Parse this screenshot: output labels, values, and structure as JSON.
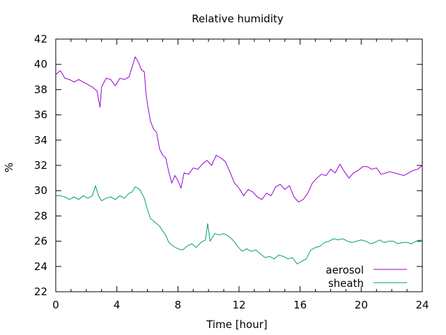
{
  "chart_data": {
    "type": "line",
    "title": "Relative humidity",
    "xlabel": "Time [hour]",
    "ylabel": "%",
    "xlim": [
      0,
      24
    ],
    "ylim": [
      22,
      42
    ],
    "x_ticks": [
      0,
      4,
      8,
      12,
      16,
      20,
      24
    ],
    "y_ticks": [
      22,
      24,
      26,
      28,
      30,
      32,
      34,
      36,
      38,
      40,
      42
    ],
    "grid": false,
    "legend_position": "bottom-right",
    "series": [
      {
        "name": "aerosol",
        "color": "#9400d3",
        "points": [
          [
            0.0,
            39.2
          ],
          [
            0.3,
            39.5
          ],
          [
            0.6,
            38.9
          ],
          [
            0.9,
            38.8
          ],
          [
            1.2,
            38.6
          ],
          [
            1.5,
            38.8
          ],
          [
            1.8,
            38.6
          ],
          [
            2.1,
            38.4
          ],
          [
            2.4,
            38.2
          ],
          [
            2.7,
            37.9
          ],
          [
            2.9,
            36.6
          ],
          [
            3.0,
            38.2
          ],
          [
            3.3,
            38.9
          ],
          [
            3.6,
            38.8
          ],
          [
            3.9,
            38.3
          ],
          [
            4.2,
            38.9
          ],
          [
            4.5,
            38.8
          ],
          [
            4.8,
            39.0
          ],
          [
            5.0,
            39.8
          ],
          [
            5.2,
            40.6
          ],
          [
            5.4,
            40.2
          ],
          [
            5.6,
            39.6
          ],
          [
            5.8,
            39.4
          ],
          [
            5.9,
            37.8
          ],
          [
            6.0,
            36.9
          ],
          [
            6.2,
            35.5
          ],
          [
            6.4,
            34.9
          ],
          [
            6.6,
            34.6
          ],
          [
            6.8,
            33.3
          ],
          [
            7.0,
            32.8
          ],
          [
            7.2,
            32.6
          ],
          [
            7.4,
            31.5
          ],
          [
            7.6,
            30.6
          ],
          [
            7.8,
            31.2
          ],
          [
            8.0,
            30.8
          ],
          [
            8.2,
            30.2
          ],
          [
            8.4,
            31.4
          ],
          [
            8.7,
            31.3
          ],
          [
            9.0,
            31.8
          ],
          [
            9.3,
            31.7
          ],
          [
            9.6,
            32.1
          ],
          [
            9.9,
            32.4
          ],
          [
            10.2,
            32.0
          ],
          [
            10.5,
            32.8
          ],
          [
            10.8,
            32.6
          ],
          [
            11.1,
            32.3
          ],
          [
            11.4,
            31.5
          ],
          [
            11.7,
            30.6
          ],
          [
            12.0,
            30.2
          ],
          [
            12.3,
            29.6
          ],
          [
            12.6,
            30.1
          ],
          [
            12.9,
            29.9
          ],
          [
            13.2,
            29.5
          ],
          [
            13.5,
            29.3
          ],
          [
            13.8,
            29.8
          ],
          [
            14.1,
            29.6
          ],
          [
            14.4,
            30.3
          ],
          [
            14.7,
            30.5
          ],
          [
            15.0,
            30.1
          ],
          [
            15.3,
            30.4
          ],
          [
            15.6,
            29.5
          ],
          [
            15.9,
            29.1
          ],
          [
            16.2,
            29.3
          ],
          [
            16.5,
            29.8
          ],
          [
            16.8,
            30.6
          ],
          [
            17.1,
            31.0
          ],
          [
            17.4,
            31.3
          ],
          [
            17.7,
            31.2
          ],
          [
            18.0,
            31.7
          ],
          [
            18.3,
            31.4
          ],
          [
            18.6,
            32.1
          ],
          [
            18.9,
            31.5
          ],
          [
            19.2,
            31.0
          ],
          [
            19.5,
            31.4
          ],
          [
            19.8,
            31.6
          ],
          [
            20.1,
            31.9
          ],
          [
            20.4,
            31.9
          ],
          [
            20.7,
            31.7
          ],
          [
            21.0,
            31.8
          ],
          [
            21.3,
            31.3
          ],
          [
            21.6,
            31.4
          ],
          [
            21.9,
            31.5
          ],
          [
            22.2,
            31.4
          ],
          [
            22.5,
            31.3
          ],
          [
            22.8,
            31.2
          ],
          [
            23.1,
            31.4
          ],
          [
            23.4,
            31.6
          ],
          [
            23.7,
            31.7
          ],
          [
            24.0,
            32.0
          ]
        ]
      },
      {
        "name": "sheath",
        "color": "#009e73",
        "points": [
          [
            0.0,
            29.6
          ],
          [
            0.3,
            29.6
          ],
          [
            0.6,
            29.5
          ],
          [
            0.9,
            29.3
          ],
          [
            1.2,
            29.5
          ],
          [
            1.5,
            29.3
          ],
          [
            1.8,
            29.6
          ],
          [
            2.1,
            29.4
          ],
          [
            2.4,
            29.6
          ],
          [
            2.6,
            30.4
          ],
          [
            2.8,
            29.6
          ],
          [
            3.0,
            29.2
          ],
          [
            3.3,
            29.4
          ],
          [
            3.6,
            29.5
          ],
          [
            3.9,
            29.3
          ],
          [
            4.2,
            29.6
          ],
          [
            4.5,
            29.4
          ],
          [
            4.8,
            29.8
          ],
          [
            5.0,
            29.9
          ],
          [
            5.2,
            30.3
          ],
          [
            5.5,
            30.1
          ],
          [
            5.8,
            29.4
          ],
          [
            6.0,
            28.5
          ],
          [
            6.2,
            27.8
          ],
          [
            6.5,
            27.5
          ],
          [
            6.8,
            27.2
          ],
          [
            7.0,
            26.8
          ],
          [
            7.2,
            26.5
          ],
          [
            7.4,
            25.9
          ],
          [
            7.7,
            25.6
          ],
          [
            8.0,
            25.4
          ],
          [
            8.3,
            25.3
          ],
          [
            8.6,
            25.6
          ],
          [
            8.9,
            25.8
          ],
          [
            9.2,
            25.5
          ],
          [
            9.5,
            25.9
          ],
          [
            9.8,
            26.1
          ],
          [
            9.95,
            27.4
          ],
          [
            10.1,
            26.0
          ],
          [
            10.4,
            26.6
          ],
          [
            10.7,
            26.5
          ],
          [
            11.0,
            26.6
          ],
          [
            11.3,
            26.4
          ],
          [
            11.6,
            26.1
          ],
          [
            11.9,
            25.6
          ],
          [
            12.2,
            25.2
          ],
          [
            12.5,
            25.4
          ],
          [
            12.8,
            25.2
          ],
          [
            13.1,
            25.3
          ],
          [
            13.4,
            25.0
          ],
          [
            13.7,
            24.7
          ],
          [
            14.0,
            24.8
          ],
          [
            14.3,
            24.6
          ],
          [
            14.6,
            24.9
          ],
          [
            14.9,
            24.8
          ],
          [
            15.2,
            24.6
          ],
          [
            15.5,
            24.7
          ],
          [
            15.8,
            24.2
          ],
          [
            16.1,
            24.4
          ],
          [
            16.4,
            24.6
          ],
          [
            16.7,
            25.3
          ],
          [
            17.0,
            25.5
          ],
          [
            17.3,
            25.6
          ],
          [
            17.6,
            25.9
          ],
          [
            17.9,
            26.0
          ],
          [
            18.2,
            26.2
          ],
          [
            18.5,
            26.1
          ],
          [
            18.8,
            26.2
          ],
          [
            19.1,
            26.0
          ],
          [
            19.4,
            25.9
          ],
          [
            19.7,
            26.0
          ],
          [
            20.0,
            26.1
          ],
          [
            20.3,
            26.0
          ],
          [
            20.6,
            25.8
          ],
          [
            20.9,
            25.9
          ],
          [
            21.2,
            26.1
          ],
          [
            21.5,
            25.9
          ],
          [
            21.8,
            26.0
          ],
          [
            22.1,
            26.0
          ],
          [
            22.4,
            25.8
          ],
          [
            22.7,
            25.9
          ],
          [
            23.0,
            25.9
          ],
          [
            23.3,
            25.8
          ],
          [
            23.6,
            26.0
          ],
          [
            23.9,
            26.1
          ],
          [
            24.0,
            25.9
          ]
        ]
      }
    ]
  }
}
